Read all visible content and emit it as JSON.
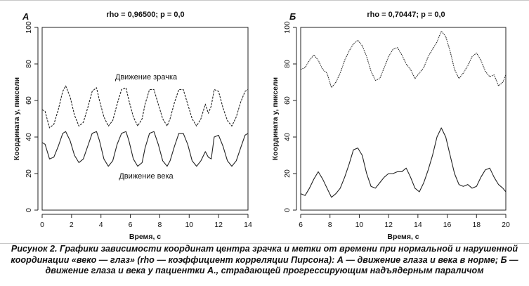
{
  "chart_data": [
    {
      "type": "line",
      "panel_letter": "А",
      "title": "rho = 0,96500; p = 0,0",
      "xlabel": "Время, с",
      "ylabel": "Координата у, пиксели",
      "xlim": [
        0,
        14
      ],
      "ylim": [
        0,
        100
      ],
      "xticks": [
        "0",
        "2",
        "4",
        "6",
        "8",
        "10",
        "12",
        "14"
      ],
      "yticks": [
        "0",
        "20",
        "40",
        "60",
        "80",
        "100"
      ],
      "annotations": [
        "Движение зрачка",
        "Движение века"
      ],
      "series": [
        {
          "name": "Движение зрачка",
          "style": "dashed",
          "x": [
            0,
            0.2,
            0.5,
            0.8,
            1.1,
            1.4,
            1.6,
            1.9,
            2.2,
            2.5,
            2.8,
            3.1,
            3.4,
            3.7,
            3.9,
            4.2,
            4.5,
            4.8,
            5.1,
            5.4,
            5.7,
            5.9,
            6.2,
            6.5,
            6.8,
            7.0,
            7.3,
            7.6,
            7.9,
            8.2,
            8.5,
            8.7,
            9.0,
            9.3,
            9.6,
            9.9,
            10.2,
            10.5,
            10.8,
            11.1,
            11.3,
            11.5,
            11.7,
            12.0,
            12.3,
            12.6,
            12.9,
            13.2,
            13.5,
            13.8,
            14.0
          ],
          "y": [
            55,
            54,
            45,
            47,
            55,
            65,
            68,
            62,
            52,
            46,
            48,
            56,
            65,
            67,
            60,
            51,
            46,
            49,
            58,
            66,
            67,
            60,
            51,
            46,
            50,
            58,
            66,
            66,
            58,
            50,
            46,
            50,
            59,
            66,
            66,
            58,
            50,
            46,
            50,
            58,
            53,
            57,
            66,
            65,
            56,
            49,
            46,
            51,
            59,
            65,
            66
          ]
        },
        {
          "name": "Движение века",
          "style": "solid",
          "x": [
            0,
            0.2,
            0.5,
            0.8,
            1.1,
            1.4,
            1.6,
            1.9,
            2.2,
            2.5,
            2.8,
            3.1,
            3.4,
            3.7,
            3.9,
            4.2,
            4.5,
            4.8,
            5.1,
            5.4,
            5.7,
            5.9,
            6.2,
            6.5,
            6.8,
            7.0,
            7.3,
            7.6,
            7.9,
            8.2,
            8.5,
            8.7,
            9.0,
            9.3,
            9.6,
            9.9,
            10.2,
            10.5,
            10.8,
            11.1,
            11.3,
            11.5,
            11.7,
            12.0,
            12.3,
            12.6,
            12.9,
            13.2,
            13.5,
            13.8,
            14.0
          ],
          "y": [
            37,
            36,
            28,
            29,
            35,
            42,
            43,
            38,
            30,
            26,
            28,
            35,
            42,
            43,
            38,
            28,
            24,
            27,
            36,
            42,
            43,
            38,
            28,
            24,
            26,
            34,
            42,
            43,
            36,
            27,
            24,
            27,
            35,
            42,
            42,
            36,
            27,
            24,
            27,
            32,
            29,
            28,
            40,
            41,
            35,
            27,
            24,
            27,
            34,
            41,
            42
          ]
        }
      ]
    },
    {
      "type": "line",
      "panel_letter": "Б",
      "title": "rho = 0,70447; p = 0,0",
      "xlabel": "Время, с",
      "ylabel": "Координата у, пиксели",
      "xlim": [
        6,
        20
      ],
      "ylim": [
        0,
        100
      ],
      "xticks": [
        "6",
        "8",
        "10",
        "12",
        "14",
        "16",
        "18",
        "20"
      ],
      "yticks": [
        "0",
        "20",
        "40",
        "60",
        "80",
        "100"
      ],
      "series": [
        {
          "name": "Движение зрачка",
          "style": "dotted",
          "x": [
            6,
            6.3,
            6.6,
            6.9,
            7.2,
            7.5,
            7.8,
            8.1,
            8.4,
            8.7,
            9.0,
            9.3,
            9.6,
            9.9,
            10.2,
            10.5,
            10.8,
            11.1,
            11.4,
            11.7,
            12.0,
            12.3,
            12.6,
            12.9,
            13.2,
            13.5,
            13.8,
            14.1,
            14.4,
            14.7,
            15.0,
            15.3,
            15.6,
            15.9,
            16.2,
            16.5,
            16.8,
            17.1,
            17.4,
            17.7,
            18.0,
            18.3,
            18.6,
            18.9,
            19.2,
            19.5,
            19.8,
            20.0
          ],
          "y": [
            77,
            78,
            82,
            85,
            82,
            77,
            75,
            67,
            70,
            75,
            82,
            87,
            91,
            93,
            90,
            84,
            76,
            71,
            72,
            78,
            84,
            88,
            89,
            85,
            80,
            77,
            72,
            75,
            78,
            84,
            88,
            92,
            98,
            95,
            87,
            77,
            72,
            75,
            79,
            84,
            86,
            82,
            76,
            73,
            74,
            68,
            70,
            74
          ]
        },
        {
          "name": "Движение века",
          "style": "solid",
          "x": [
            6,
            6.3,
            6.6,
            6.9,
            7.2,
            7.5,
            7.8,
            8.1,
            8.4,
            8.7,
            9.0,
            9.3,
            9.6,
            9.9,
            10.2,
            10.5,
            10.8,
            11.1,
            11.4,
            11.7,
            12.0,
            12.3,
            12.6,
            12.9,
            13.2,
            13.5,
            13.8,
            14.1,
            14.4,
            14.7,
            15.0,
            15.3,
            15.6,
            15.9,
            16.2,
            16.5,
            16.8,
            17.1,
            17.4,
            17.7,
            18.0,
            18.3,
            18.6,
            18.9,
            19.2,
            19.5,
            19.8,
            20.0
          ],
          "y": [
            9,
            8,
            12,
            17,
            21,
            17,
            12,
            7,
            9,
            12,
            18,
            25,
            33,
            34,
            30,
            20,
            13,
            12,
            15,
            18,
            20,
            20,
            21,
            21,
            23,
            18,
            12,
            10,
            15,
            22,
            30,
            40,
            45,
            40,
            30,
            20,
            14,
            13,
            14,
            12,
            13,
            18,
            22,
            23,
            18,
            14,
            12,
            10
          ]
        }
      ]
    }
  ],
  "caption": "Рисунок 2. Графики зависимости координат центра зрачка и метки от времени при нормальной и нарушенной координации «веко — глаз» (rho — коэффициент корреляции Пирсона): А — движение глаза и века в норме; Б — движение глаза и века у пациентки А., страдающей прогрессирующим надъядерным параличом"
}
